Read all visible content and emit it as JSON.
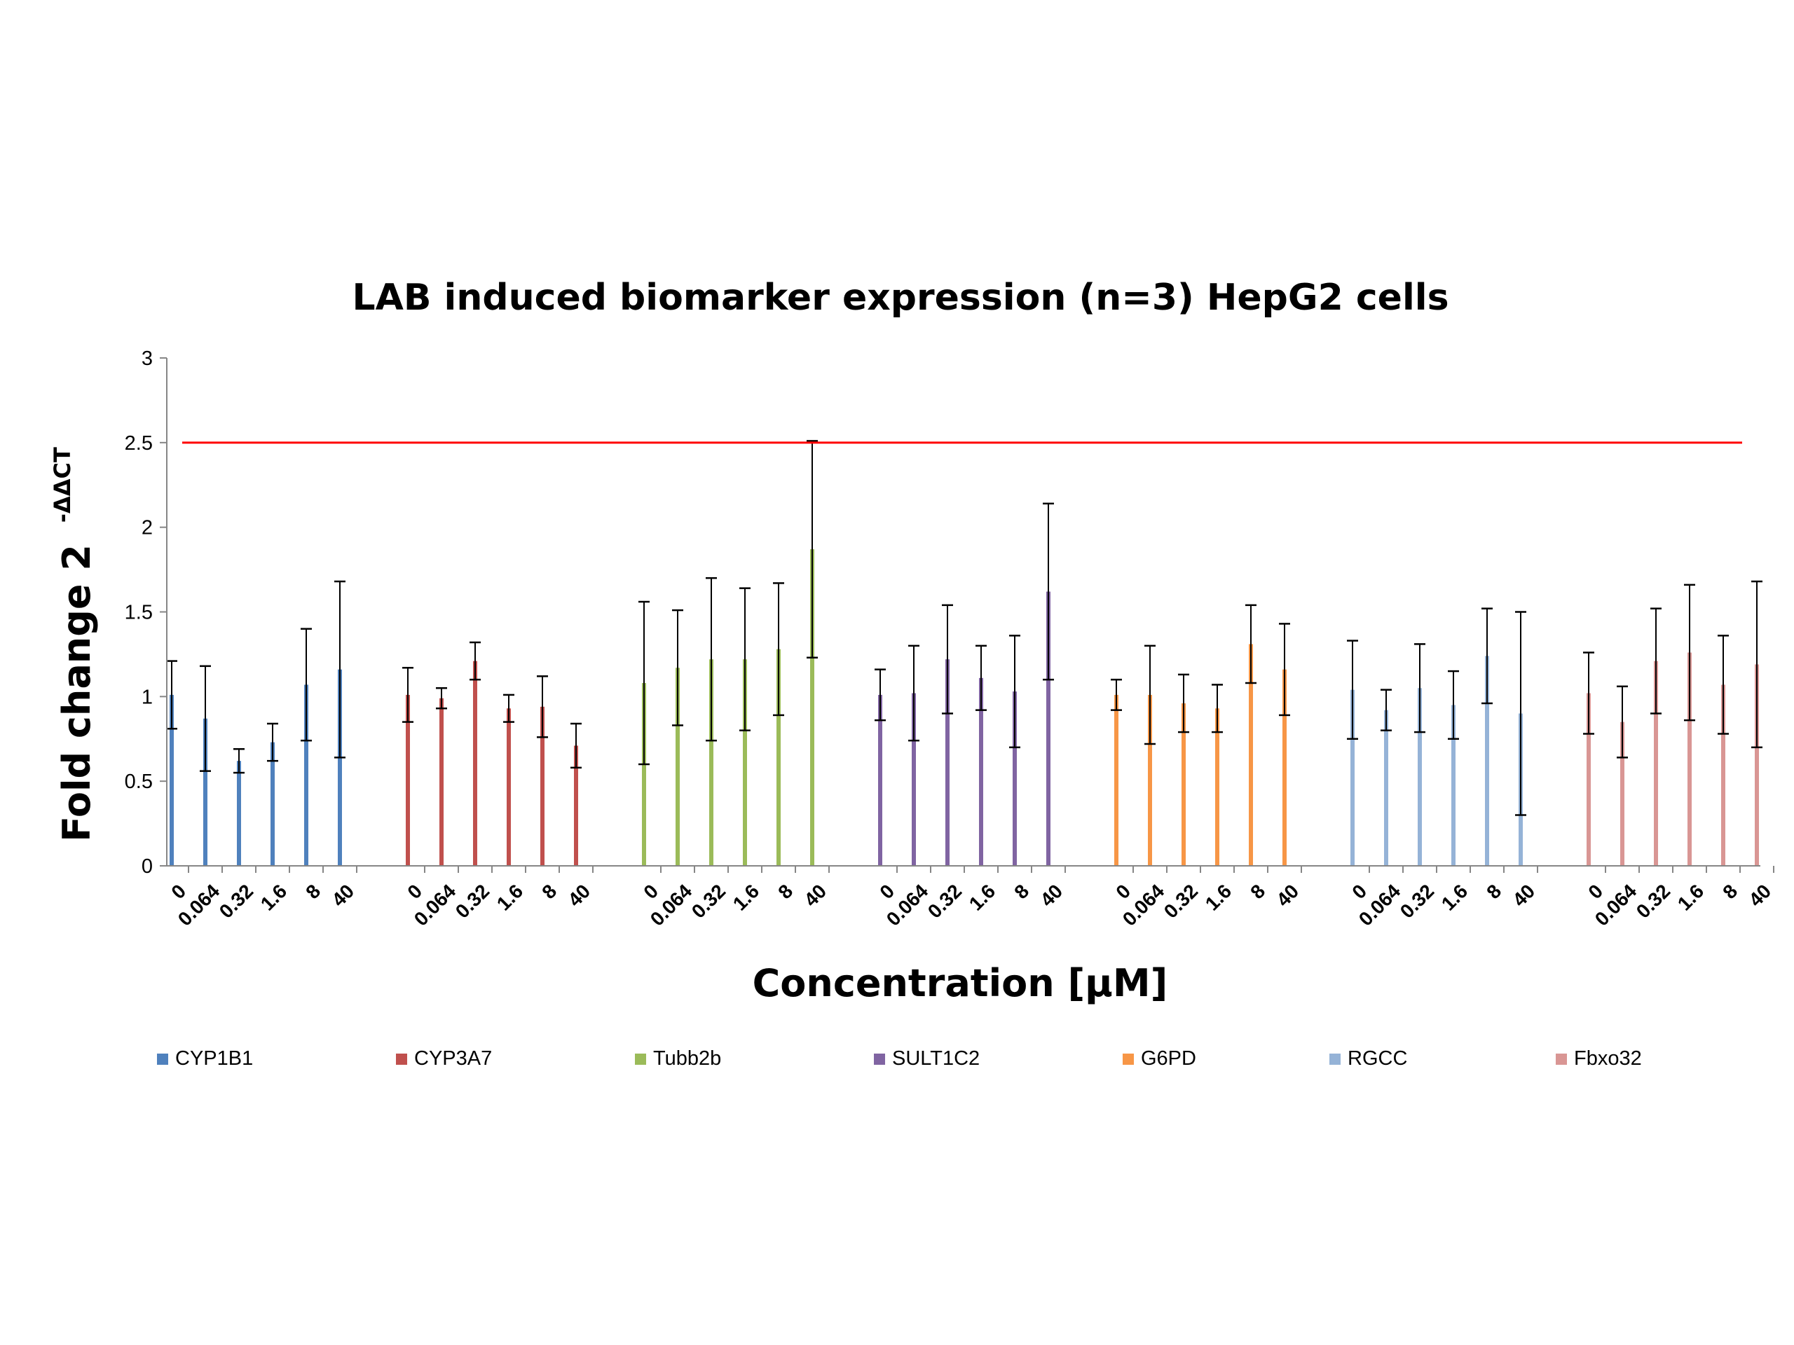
{
  "chart_data": {
    "type": "bar",
    "title": "LAB induced biomarker expression (n=3) HepG2 cells",
    "xlabel": "Concentration [µM]",
    "ylabel": "Fold change 2",
    "ylabel_superscript": "-ΔΔCT",
    "ylim": [
      0,
      3
    ],
    "yticks": [
      "0",
      "0.5",
      "1",
      "1.5",
      "2",
      "2.5",
      "3"
    ],
    "concentrations": [
      "0",
      "0.064",
      "0.32",
      "1.6",
      "8",
      "40"
    ],
    "threshold": {
      "value": 2.5,
      "color": "#ff0000"
    },
    "legend_position": "bottom",
    "series": [
      {
        "name": "CYP1B1",
        "color": "#4f81bd",
        "values": [
          1.01,
          0.87,
          0.62,
          0.73,
          1.07,
          1.16
        ],
        "errors": [
          0.2,
          0.31,
          0.07,
          0.11,
          0.33,
          0.52
        ]
      },
      {
        "name": "CYP3A7",
        "color": "#c0504d",
        "values": [
          1.01,
          0.99,
          1.21,
          0.93,
          0.94,
          0.71
        ],
        "errors": [
          0.16,
          0.06,
          0.11,
          0.08,
          0.18,
          0.13
        ]
      },
      {
        "name": "Tubb2b",
        "color": "#9bbb59",
        "values": [
          1.08,
          1.17,
          1.22,
          1.22,
          1.28,
          1.87
        ],
        "errors": [
          0.48,
          0.34,
          0.48,
          0.42,
          0.39,
          0.64
        ]
      },
      {
        "name": "SULT1C2",
        "color": "#8064a2",
        "values": [
          1.01,
          1.02,
          1.22,
          1.11,
          1.03,
          1.62
        ],
        "errors": [
          0.15,
          0.28,
          0.32,
          0.19,
          0.33,
          0.52
        ]
      },
      {
        "name": "G6PD",
        "color": "#f79646",
        "values": [
          1.01,
          1.01,
          0.96,
          0.93,
          1.31,
          1.16
        ],
        "errors": [
          0.09,
          0.29,
          0.17,
          0.14,
          0.23,
          0.27
        ]
      },
      {
        "name": "RGCC",
        "color": "#95b3d7",
        "values": [
          1.04,
          0.92,
          1.05,
          0.95,
          1.24,
          0.9
        ],
        "errors": [
          0.29,
          0.12,
          0.26,
          0.2,
          0.28,
          0.6
        ]
      },
      {
        "name": "Fbxo32",
        "color": "#d99694",
        "values": [
          1.02,
          0.85,
          1.21,
          1.26,
          1.07,
          1.19
        ],
        "errors": [
          0.24,
          0.21,
          0.31,
          0.4,
          0.29,
          0.49
        ]
      }
    ]
  }
}
